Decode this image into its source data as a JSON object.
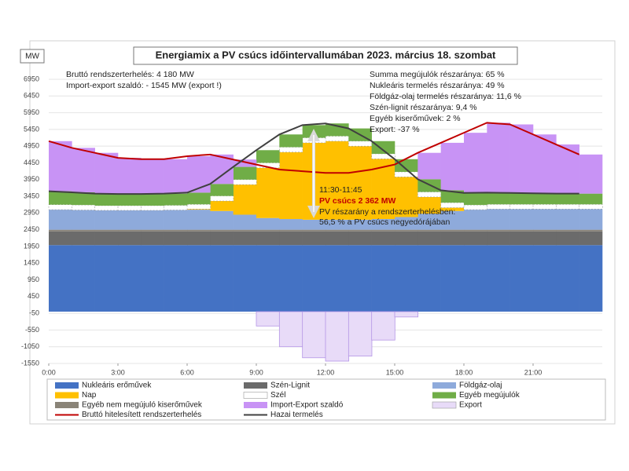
{
  "chart_data": {
    "type": "area",
    "stacked": true,
    "title": "Energiamix a PV csúcs időintervallumában 2023. március 18. szombat",
    "y_unit": "MW",
    "annotations": {
      "top_left": [
        "Bruttó rendszerterhelés: 4 180  MW",
        "Import-export szaldó:  - 1545 MW (export !)"
      ],
      "top_right": [
        "Summa megújulók részaránya: 65 %",
        "Nukleáris termelés részaránya: 49 %",
        "Földgáz-olaj termelés részaránya: 11,6 %",
        "Szén-lignit részaránya: 9,4 %",
        "Egyéb kiserőművek: 2 %",
        "Export: -37 %"
      ],
      "peak": [
        "11:30-11:45",
        "PV csúcs 2 362 MW",
        "PV részarány a rendszerterhelésben:",
        "56,5 % a PV csúcs negyedórájában"
      ]
    },
    "x": [
      0,
      1,
      2,
      3,
      4,
      5,
      6,
      7,
      8,
      9,
      10,
      11,
      12,
      13,
      14,
      15,
      16,
      17,
      18,
      19,
      20,
      21,
      22,
      23
    ],
    "xlim": [
      0,
      24
    ],
    "xticks": [
      {
        "value": 0,
        "label": "0:00"
      },
      {
        "value": 3,
        "label": "3:00"
      },
      {
        "value": 6,
        "label": "6:00"
      },
      {
        "value": 9,
        "label": "9:00"
      },
      {
        "value": 12,
        "label": "12:00"
      },
      {
        "value": 15,
        "label": "15:00"
      },
      {
        "value": 18,
        "label": "18:00"
      },
      {
        "value": 21,
        "label": "21:00"
      }
    ],
    "ylim": [
      -1550,
      6950
    ],
    "yticks": [
      -1550,
      -1050,
      -550,
      -50,
      450,
      950,
      1450,
      1950,
      2450,
      2950,
      3450,
      3950,
      4450,
      4950,
      5450,
      5950,
      6450,
      6950
    ],
    "grid": true,
    "series": [
      {
        "name": "Nukleáris erőművek",
        "color": "#4472c4",
        "values": [
          1990,
          1990,
          1990,
          1990,
          1990,
          1990,
          1990,
          1990,
          1990,
          1990,
          1990,
          1990,
          1990,
          1990,
          1990,
          1990,
          1990,
          1990,
          1990,
          1990,
          1990,
          1990,
          1990,
          1990
        ]
      },
      {
        "name": "Szén-Lignit",
        "color": "#6b6b6b",
        "values": [
          410,
          410,
          410,
          410,
          410,
          410,
          410,
          410,
          410,
          410,
          410,
          410,
          410,
          410,
          410,
          410,
          410,
          410,
          410,
          410,
          410,
          410,
          410,
          410
        ]
      },
      {
        "name": "Egyéb nem megújuló kiserőművek",
        "color": "#8a8478",
        "values": [
          50,
          50,
          50,
          50,
          50,
          50,
          50,
          50,
          50,
          50,
          50,
          50,
          50,
          50,
          50,
          50,
          50,
          50,
          50,
          50,
          50,
          50,
          50,
          50
        ]
      },
      {
        "name": "Földgáz-olaj",
        "color": "#8eaadb",
        "values": [
          600,
          590,
          580,
          580,
          580,
          590,
          600,
          560,
          450,
          350,
          320,
          300,
          300,
          300,
          320,
          380,
          480,
          560,
          600,
          620,
          620,
          620,
          620,
          620
        ]
      },
      {
        "name": "Nap",
        "color": "#ffc000",
        "values": [
          0,
          0,
          0,
          0,
          0,
          0,
          20,
          300,
          900,
          1500,
          2000,
          2300,
          2350,
          2200,
          1800,
          1200,
          500,
          100,
          0,
          0,
          0,
          0,
          0,
          0
        ]
      },
      {
        "name": "Szél",
        "color": "#ffffff",
        "values": [
          150,
          150,
          140,
          140,
          140,
          140,
          140,
          150,
          150,
          150,
          150,
          150,
          150,
          150,
          150,
          150,
          150,
          150,
          140,
          140,
          140,
          140,
          140,
          140
        ]
      },
      {
        "name": "Egyéb megújulók",
        "color": "#70ad47",
        "values": [
          400,
          380,
          360,
          350,
          350,
          350,
          350,
          360,
          380,
          380,
          380,
          380,
          380,
          380,
          380,
          380,
          380,
          370,
          360,
          350,
          340,
          330,
          320,
          320
        ]
      },
      {
        "name": "Import-Export szaldó",
        "color": "#c893f5",
        "values": [
          1500,
          1330,
          1220,
          1080,
          1040,
          1030,
          1090,
          880,
          220,
          0,
          0,
          0,
          0,
          0,
          0,
          0,
          790,
          1420,
          1800,
          2090,
          2050,
          1760,
          1470,
          1170
        ]
      },
      {
        "name": "Export",
        "color": "#e8dbf8",
        "values": [
          0,
          0,
          0,
          0,
          0,
          0,
          0,
          0,
          0,
          -430,
          -1050,
          -1380,
          -1480,
          -1330,
          -850,
          -160,
          0,
          0,
          0,
          0,
          0,
          0,
          0,
          0
        ]
      },
      {
        "name": "Bruttó hitelesített rendszerterhelés",
        "type": "line",
        "color": "#c00000",
        "values": [
          5100,
          4900,
          4750,
          4600,
          4560,
          4560,
          4650,
          4700,
          4550,
          4400,
          4250,
          4200,
          4150,
          4150,
          4250,
          4400,
          4750,
          5050,
          5350,
          5650,
          5600,
          5300,
          5000,
          4700
        ]
      },
      {
        "name": "Hazai termelés",
        "type": "line",
        "color": "#404040",
        "values": [
          3600,
          3570,
          3530,
          3520,
          3520,
          3530,
          3560,
          3820,
          4330,
          4830,
          5300,
          5580,
          5630,
          5480,
          5100,
          4560,
          3960,
          3630,
          3550,
          3560,
          3550,
          3540,
          3530,
          3530
        ]
      }
    ]
  }
}
